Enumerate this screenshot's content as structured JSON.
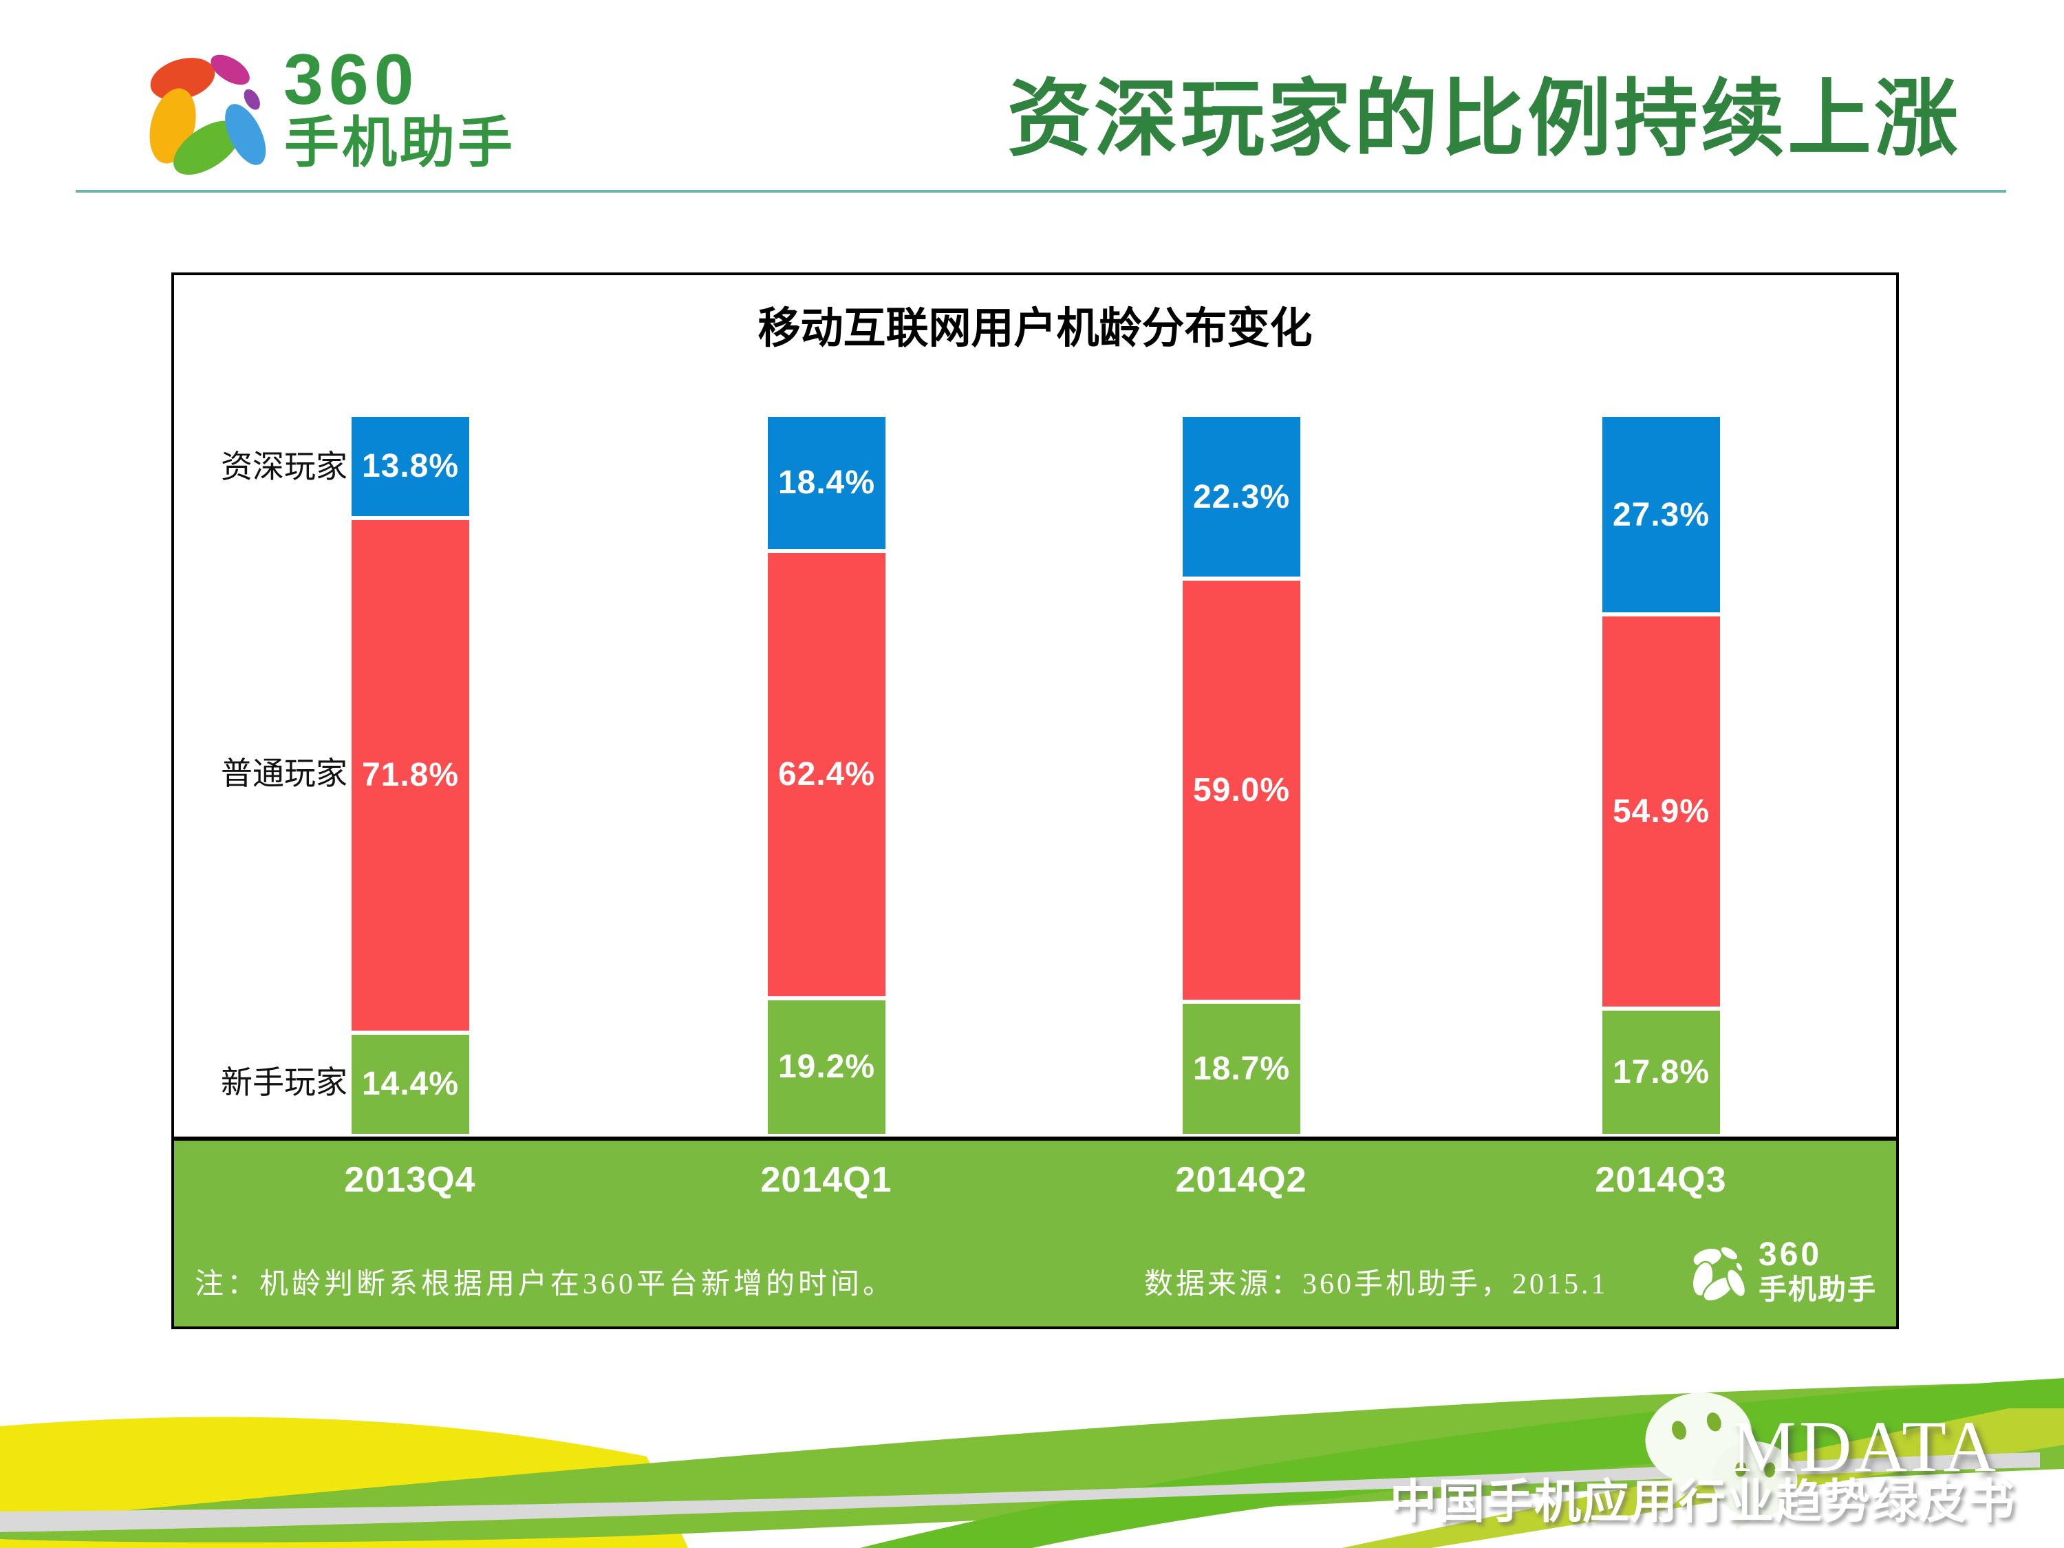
{
  "header": {
    "logo": {
      "number": "360",
      "name": "手机助手"
    },
    "title": "资深玩家的比例持续上涨"
  },
  "panel": {
    "chart_title": "移动互联网用户机龄分布变化",
    "note": "注：机龄判断系根据用户在360平台新增的时间。",
    "source": "数据来源：360手机助手，2015.1",
    "footer_logo": {
      "number": "360",
      "name": "手机助手"
    }
  },
  "chart_data": {
    "type": "bar",
    "stacked": true,
    "title": "移动互联网用户机龄分布变化",
    "unit": "%",
    "ylim": [
      0,
      100
    ],
    "grid": false,
    "legend_position": "left-of-first-bar",
    "value_label_style": "white bold, one decimal, inside segment",
    "categories": [
      "2013Q4",
      "2014Q1",
      "2014Q2",
      "2014Q3"
    ],
    "series": [
      {
        "name": "资深玩家",
        "color": "#0886D6",
        "values": [
          13.8,
          18.4,
          22.3,
          27.3
        ]
      },
      {
        "name": "普通玩家",
        "color": "#FB4D50",
        "values": [
          71.8,
          62.4,
          59.0,
          54.9
        ]
      },
      {
        "name": "新手玩家",
        "color": "#7BBA41",
        "values": [
          14.4,
          19.2,
          18.7,
          17.8
        ]
      }
    ]
  },
  "footer_banner": {
    "mdata": "MDATA",
    "subtitle": "中国手机应用行业趋势绿皮书"
  },
  "icons": {
    "brand": "360-pinwheel-icon",
    "footer_brand": "360-pinwheel-white-icon",
    "wechat": "wechat-bubbles-icon"
  },
  "colors": {
    "title_green": "#2F833E",
    "logo_green": "#339540",
    "band_green": "#7BBA41",
    "bar_blue": "#0886D6",
    "bar_red": "#FB4D50",
    "bar_green": "#7BBA41",
    "header_rule": "#6FB2A8",
    "swoosh_yellow": "#F1E70E",
    "swoosh_green_mid": "#7FBE37",
    "swoosh_green_bright": "#66BD26",
    "swoosh_yellow_green": "#BCD32F",
    "swoosh_gray": "#D9D9D9"
  }
}
